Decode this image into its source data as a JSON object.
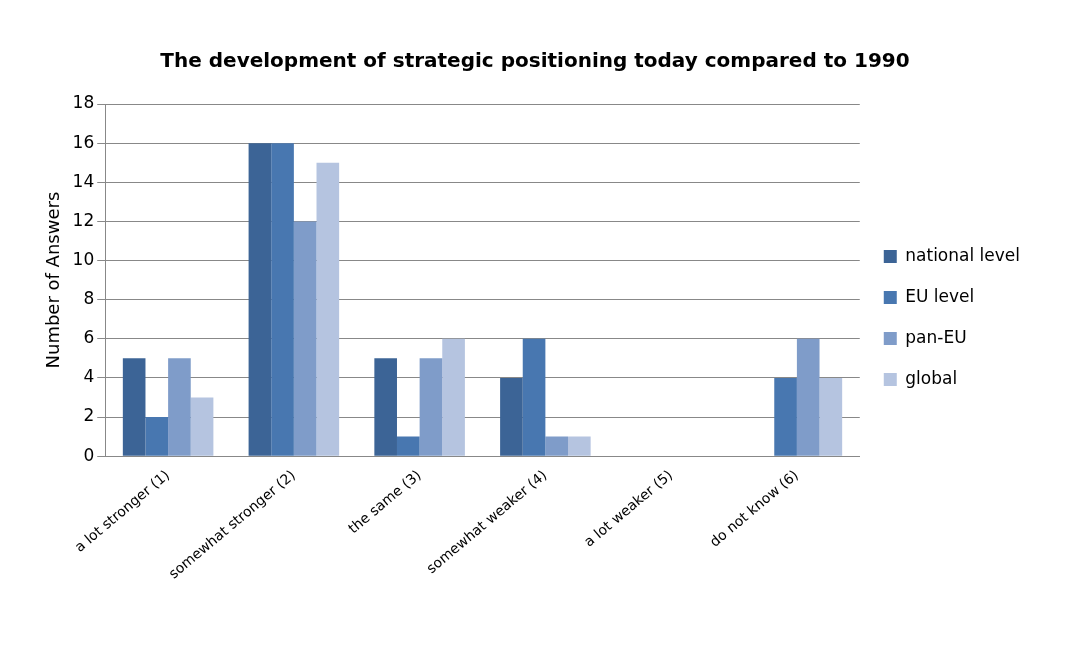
{
  "chart_data": {
    "type": "bar",
    "title": "The development of strategic positioning today compared to 1990",
    "ylabel": "Number of Answers",
    "categories": [
      "a lot stronger (1)",
      "somewhat stronger (2)",
      "the same (3)",
      "somewhat weaker (4)",
      "a lot weaker (5)",
      "do not know (6)"
    ],
    "series": [
      {
        "name": "national level",
        "color": "#3c6496",
        "values": [
          5,
          16,
          5,
          4,
          0,
          0
        ]
      },
      {
        "name": "EU level",
        "color": "#4877b0",
        "values": [
          2,
          16,
          1,
          6,
          0,
          4
        ]
      },
      {
        "name": "pan-EU",
        "color": "#7f9cc9",
        "values": [
          5,
          12,
          5,
          1,
          0,
          6
        ]
      },
      {
        "name": "global",
        "color": "#b5c4e0",
        "values": [
          3,
          15,
          6,
          1,
          0,
          4
        ]
      }
    ],
    "ylim": [
      0,
      18
    ],
    "yticks": [
      0,
      2,
      4,
      6,
      8,
      10,
      12,
      14,
      16,
      18
    ],
    "grid": "y",
    "legend": "right"
  }
}
